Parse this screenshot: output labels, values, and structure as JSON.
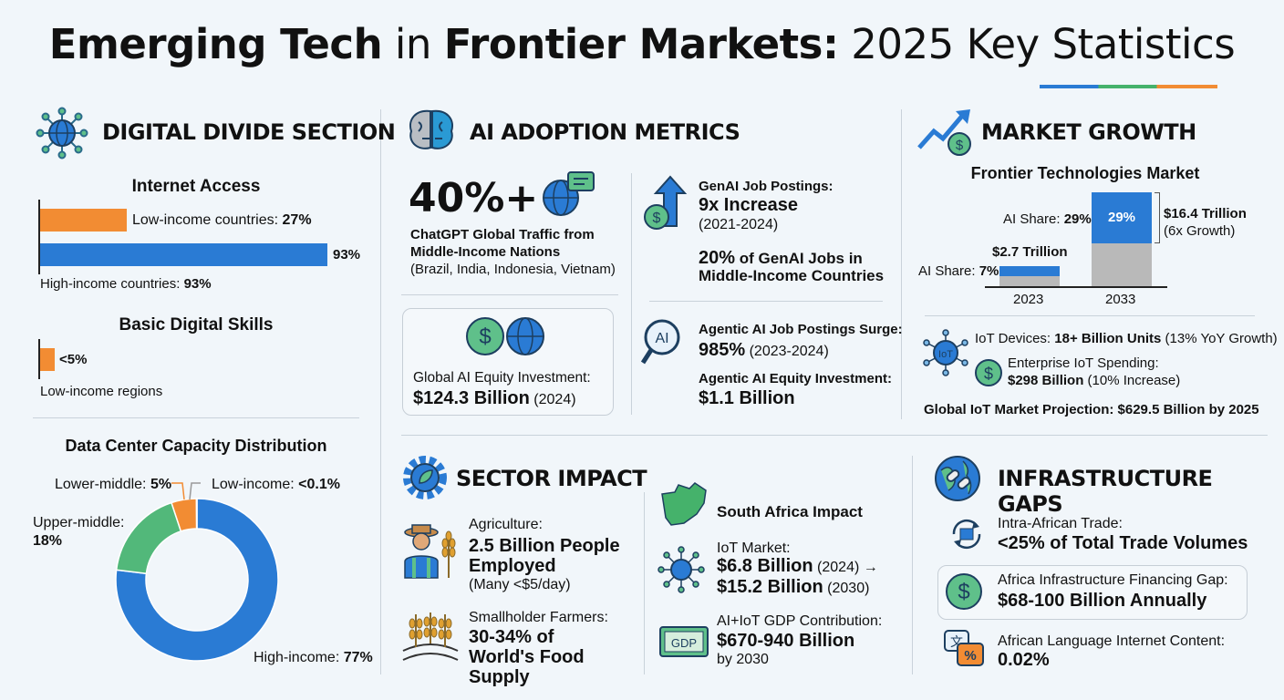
{
  "title": {
    "part1": "Emerging Tech",
    "part2": " in ",
    "part3": "Frontier Markets:",
    "part4": " 2025 Key Statistics"
  },
  "colors": {
    "blue": "#2a7bd4",
    "orange": "#f28c33",
    "green": "#45b26b",
    "gray": "#b9b9b9"
  },
  "digital": {
    "heading": "DIGITAL DIVIDE SECTION",
    "internet_title": "Internet Access",
    "low_label": "Low-income countries: ",
    "low_val": "27%",
    "high_bar_label": "93%",
    "high_label": "High-income countries: ",
    "high_val": "93%",
    "skills_title": "Basic Digital Skills",
    "skills_val": "<5%",
    "skills_label": "Low-income regions",
    "dc_title": "Data Center Capacity Distribution",
    "dc_lower": "Lower-middle: ",
    "dc_lower_v": "5%",
    "dc_low": "Low-income: ",
    "dc_low_v": "<0.1%",
    "dc_upper": "Upper-middle:",
    "dc_upper_v": "18%",
    "dc_high": "High-income: ",
    "dc_high_v": "77%"
  },
  "ai": {
    "heading": "AI ADOPTION METRICS",
    "traffic_val": "40%+",
    "traffic_l1": "ChatGPT Global Traffic from",
    "traffic_l2": "Middle-Income Nations",
    "traffic_l3": "(Brazil, India, Indonesia, Vietnam)",
    "equity_label": "Global AI Equity Investment:",
    "equity_val": "$124.3 Billion",
    "equity_year": " (2024)",
    "jobs_label": "GenAI Job Postings:",
    "jobs_val": "9x Increase",
    "jobs_years": "(2021-2024)",
    "jobs20_a": "20%",
    "jobs20_b": " of GenAI Jobs in",
    "jobs20_c": "Middle-Income Countries",
    "agentic_label": "Agentic AI Job Postings Surge:",
    "agentic_val": "985%",
    "agentic_years": " (2023-2024)",
    "agentic_eq_label": "Agentic AI Equity Investment:",
    "agentic_eq_val": "$1.1 Billion",
    "ai_icon_text": "AI"
  },
  "market": {
    "heading": "MARKET GROWTH",
    "chart_title": "Frontier Technologies Market",
    "ai29_label": "AI Share: ",
    "ai29_val": "29%",
    "bar_inner": "29%",
    "total2033": "$16.4 Trillion",
    "growth": "(6x Growth)",
    "total2023": "$2.7 Trillion",
    "ai7_label": "AI Share: ",
    "ai7_val": "7%",
    "year1": "2023",
    "year2": "2033",
    "iot_label": "IoT Devices: ",
    "iot_val": "18+ Billion Units",
    "iot_growth": " (13% YoY Growth)",
    "iot_icon_text": "IoT",
    "spend_label": "Enterprise IoT Spending:",
    "spend_val": "$298 Billion",
    "spend_inc": " (10% Increase)",
    "projection": "Global IoT Market Projection: $629.5 Billion by 2025"
  },
  "sector": {
    "heading": "SECTOR IMPACT",
    "agri_label": "Agriculture:",
    "agri_val": "2.5 Billion People Employed",
    "agri_note": "(Many <$5/day)",
    "small_label": "Smallholder Farmers:",
    "small_val": "30-34% of World's Food Supply",
    "sa_title": "South Africa Impact",
    "iot_label": "IoT Market:",
    "iot_v1": "$6.8 Billion",
    "iot_y1": " (2024) →",
    "iot_v2": "$15.2 Billion",
    "iot_y2": " (2030)",
    "gdp_label": "AI+IoT GDP Contribution:",
    "gdp_val": "$670-940 Billion",
    "gdp_year": "by 2030",
    "gdp_icon_text": "GDP"
  },
  "infra": {
    "heading": "INFRASTRUCTURE GAPS",
    "trade_label": "Intra-African Trade:",
    "trade_val": "<25% of Total Trade Volumes",
    "fin_label": "Africa Infrastructure Financing Gap:",
    "fin_val": "$68-100 Billion Annually",
    "lang_label": "African Language Internet Content:",
    "lang_val": "0.02%"
  },
  "chart_data": [
    {
      "type": "bar",
      "title": "Internet Access",
      "categories": [
        "Low-income countries",
        "High-income countries"
      ],
      "values": [
        27,
        93
      ],
      "unit": "%"
    },
    {
      "type": "bar",
      "title": "Basic Digital Skills",
      "categories": [
        "Low-income regions"
      ],
      "values": [
        5
      ],
      "labels": [
        "<5%"
      ],
      "unit": "%"
    },
    {
      "type": "pie",
      "title": "Data Center Capacity Distribution",
      "categories": [
        "High-income",
        "Upper-middle",
        "Lower-middle",
        "Low-income"
      ],
      "values": [
        77,
        18,
        5,
        0.1
      ],
      "labels": [
        "77%",
        "18%",
        "5%",
        "<0.1%"
      ],
      "colors": [
        "#2a7bd4",
        "#52b87a",
        "#f28c33",
        "#e6e6e6"
      ]
    },
    {
      "type": "bar",
      "title": "Frontier Technologies Market",
      "categories": [
        "2023",
        "2033"
      ],
      "values": [
        2.7,
        16.4
      ],
      "unit": "Trillion USD",
      "ai_share": [
        7,
        29
      ]
    }
  ]
}
